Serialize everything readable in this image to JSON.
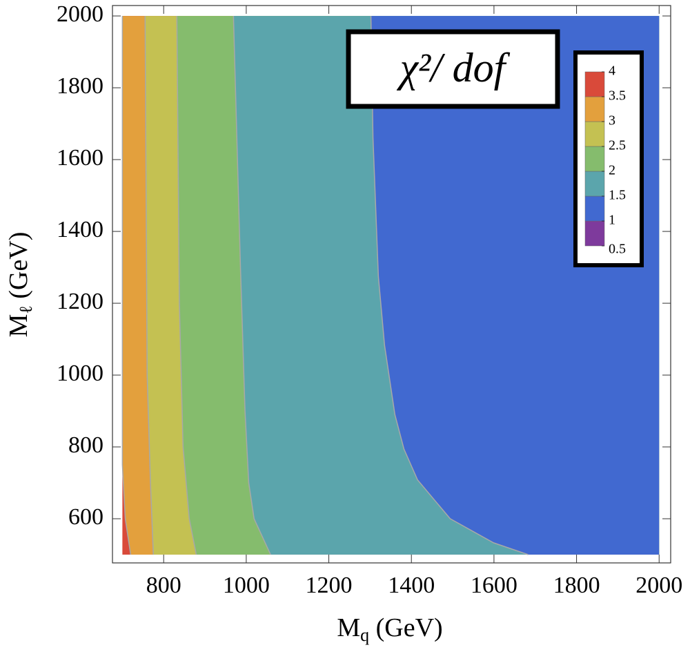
{
  "chart_data": {
    "type": "contour",
    "title": "χ²/ dof",
    "x_label": {
      "base": "M",
      "sub": "q",
      "rest": " (GeV)"
    },
    "y_label": {
      "base": "M",
      "sub": "ℓ",
      "rest": " (GeV)"
    },
    "xlim": [
      676,
      2028
    ],
    "ylim": [
      477,
      2029
    ],
    "xticks": [
      800,
      1000,
      1200,
      1400,
      1600,
      1800,
      2000
    ],
    "yticks": [
      600,
      800,
      1000,
      1200,
      1400,
      1600,
      1800,
      2000
    ],
    "xdomain": [
      700,
      2000
    ],
    "ydomain": [
      500,
      2000
    ],
    "levels": [
      0.5,
      1,
      1.5,
      2,
      2.5,
      3,
      3.5,
      4
    ],
    "level_colors": [
      "#7e3a9c",
      "#4169d0",
      "#5ba5ac",
      "#85bc6d",
      "#c4c152",
      "#e3a03d",
      "#d94a3a"
    ],
    "boundaries": [
      {
        "level": 3.5,
        "x": [
          720,
          707,
          700,
          700
        ],
        "y": [
          500,
          600,
          750,
          2000
        ]
      },
      {
        "level": 3,
        "x": [
          775,
          768,
          760,
          755
        ],
        "y": [
          500,
          700,
          1000,
          2000
        ]
      },
      {
        "level": 2.5,
        "x": [
          879,
          862,
          847,
          838,
          832
        ],
        "y": [
          500,
          600,
          800,
          1200,
          2000
        ]
      },
      {
        "level": 2,
        "x": [
          1059,
          1019,
          1006,
          997,
          986,
          969
        ],
        "y": [
          500,
          600,
          700,
          900,
          1300,
          2000
        ]
      },
      {
        "level": 1.5,
        "x": [
          1683,
          1599,
          1494,
          1415,
          1382,
          1360,
          1335,
          1320,
          1307,
          1302
        ],
        "y": [
          500,
          533,
          600,
          708,
          794,
          890,
          1083,
          1275,
          1660,
          2000
        ]
      }
    ]
  }
}
